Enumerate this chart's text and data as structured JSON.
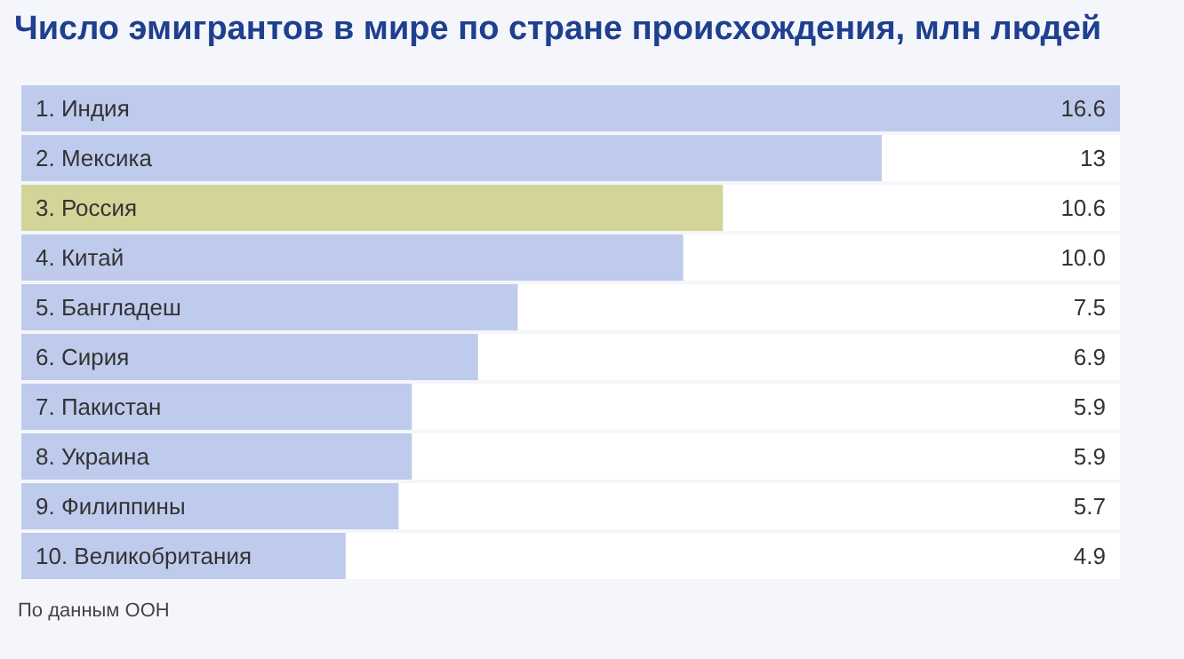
{
  "chart_data": {
    "type": "bar",
    "orientation": "horizontal",
    "title": "Число эмигрантов в мире по стране происхождения, млн людей",
    "categories": [
      "1. Индия",
      "2. Мексика",
      "3. Россия",
      "4. Китай",
      "5. Бангладеш",
      "6. Сирия",
      "7. Пакистан",
      "8. Украина",
      "9. Филиппины",
      "10. Великобритания"
    ],
    "values": [
      16.6,
      13,
      10.6,
      10.0,
      7.5,
      6.9,
      5.9,
      5.9,
      5.7,
      4.9
    ],
    "value_labels": [
      "16.6",
      "13",
      "10.6",
      "10.0",
      "7.5",
      "6.9",
      "5.9",
      "5.9",
      "5.7",
      "4.9"
    ],
    "colors": [
      "#bfcbec",
      "#bfcbec",
      "#d3d497",
      "#bfcbec",
      "#bfcbec",
      "#bfcbec",
      "#bfcbec",
      "#bfcbec",
      "#bfcbec",
      "#bfcbec"
    ],
    "annotations": [
      "По данным ООН"
    ]
  }
}
